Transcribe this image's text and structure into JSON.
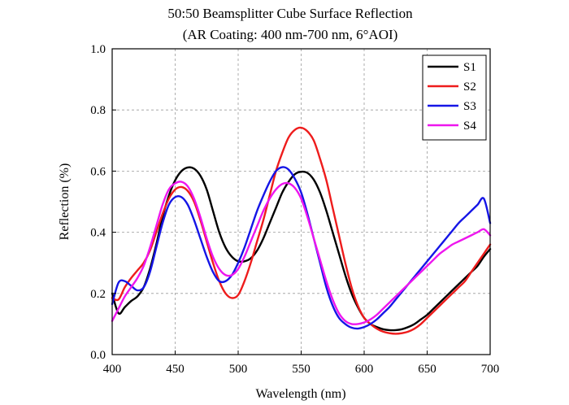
{
  "chart_data": {
    "type": "line",
    "title": "50:50 Beamsplitter Cube Surface Reflection",
    "subtitle": "(AR Coating: 400 nm-700 nm, 6°AOI)",
    "xlabel": "Wavelength (nm)",
    "ylabel": "Reflection (%)",
    "xlim": [
      400,
      700
    ],
    "ylim": [
      0.0,
      1.0
    ],
    "x_ticks": [
      400,
      450,
      500,
      550,
      600,
      650,
      700
    ],
    "y_ticks": [
      0.0,
      0.2,
      0.4,
      0.6,
      0.8,
      1.0
    ],
    "x_tick_labels": [
      "400",
      "450",
      "500",
      "550",
      "600",
      "650",
      "700"
    ],
    "y_tick_labels": [
      "0.0",
      "0.2",
      "0.4",
      "0.6",
      "0.8",
      "1.0"
    ],
    "grid": true,
    "legend_position": "top-right",
    "series": [
      {
        "name": "S1",
        "color": "#000000",
        "x": [
          400,
          405,
          410,
          415,
          420,
          425,
          430,
          435,
          440,
          445,
          450,
          455,
          460,
          465,
          470,
          475,
          480,
          485,
          490,
          495,
          500,
          505,
          510,
          515,
          520,
          525,
          530,
          535,
          540,
          545,
          550,
          555,
          560,
          565,
          570,
          575,
          580,
          585,
          590,
          595,
          600,
          605,
          610,
          615,
          620,
          625,
          630,
          635,
          640,
          645,
          650,
          655,
          660,
          665,
          670,
          675,
          680,
          685,
          690,
          695,
          700
        ],
        "values": [
          0.2,
          0.135,
          0.155,
          0.175,
          0.19,
          0.22,
          0.28,
          0.36,
          0.45,
          0.52,
          0.57,
          0.6,
          0.612,
          0.608,
          0.585,
          0.54,
          0.47,
          0.4,
          0.35,
          0.32,
          0.305,
          0.305,
          0.315,
          0.34,
          0.38,
          0.43,
          0.48,
          0.53,
          0.565,
          0.59,
          0.598,
          0.594,
          0.572,
          0.53,
          0.47,
          0.4,
          0.33,
          0.26,
          0.2,
          0.155,
          0.12,
          0.1,
          0.09,
          0.083,
          0.08,
          0.08,
          0.083,
          0.09,
          0.1,
          0.115,
          0.13,
          0.15,
          0.17,
          0.19,
          0.21,
          0.23,
          0.25,
          0.27,
          0.29,
          0.32,
          0.345
        ]
      },
      {
        "name": "S2",
        "color": "#ee1c1c",
        "x": [
          400,
          405,
          410,
          415,
          420,
          425,
          430,
          435,
          440,
          445,
          450,
          455,
          460,
          465,
          470,
          475,
          480,
          485,
          490,
          495,
          500,
          505,
          510,
          515,
          520,
          525,
          530,
          535,
          540,
          545,
          550,
          555,
          560,
          565,
          570,
          575,
          580,
          585,
          590,
          595,
          600,
          605,
          610,
          615,
          620,
          625,
          630,
          635,
          640,
          645,
          650,
          655,
          660,
          665,
          670,
          675,
          680,
          685,
          690,
          695,
          700
        ],
        "values": [
          0.185,
          0.18,
          0.22,
          0.25,
          0.275,
          0.3,
          0.34,
          0.4,
          0.46,
          0.51,
          0.54,
          0.548,
          0.535,
          0.5,
          0.44,
          0.37,
          0.3,
          0.24,
          0.2,
          0.185,
          0.195,
          0.24,
          0.3,
          0.37,
          0.44,
          0.52,
          0.6,
          0.66,
          0.71,
          0.735,
          0.742,
          0.73,
          0.7,
          0.64,
          0.57,
          0.48,
          0.39,
          0.3,
          0.22,
          0.16,
          0.12,
          0.1,
          0.085,
          0.075,
          0.07,
          0.068,
          0.07,
          0.075,
          0.085,
          0.1,
          0.12,
          0.14,
          0.16,
          0.18,
          0.2,
          0.22,
          0.24,
          0.27,
          0.3,
          0.33,
          0.36
        ]
      },
      {
        "name": "S3",
        "color": "#1515e6",
        "x": [
          400,
          405,
          410,
          415,
          420,
          425,
          430,
          435,
          440,
          445,
          450,
          455,
          460,
          465,
          470,
          475,
          480,
          485,
          490,
          495,
          500,
          505,
          510,
          515,
          520,
          525,
          530,
          535,
          540,
          545,
          550,
          555,
          560,
          565,
          570,
          575,
          580,
          585,
          590,
          595,
          600,
          605,
          610,
          615,
          620,
          625,
          630,
          635,
          640,
          645,
          650,
          655,
          660,
          665,
          670,
          675,
          680,
          685,
          690,
          695,
          700
        ],
        "values": [
          0.165,
          0.235,
          0.24,
          0.225,
          0.21,
          0.22,
          0.27,
          0.35,
          0.43,
          0.49,
          0.515,
          0.515,
          0.49,
          0.44,
          0.38,
          0.32,
          0.27,
          0.24,
          0.24,
          0.26,
          0.3,
          0.35,
          0.41,
          0.47,
          0.52,
          0.565,
          0.6,
          0.613,
          0.605,
          0.575,
          0.53,
          0.46,
          0.38,
          0.3,
          0.22,
          0.16,
          0.12,
          0.1,
          0.088,
          0.085,
          0.09,
          0.1,
          0.115,
          0.135,
          0.155,
          0.18,
          0.205,
          0.23,
          0.255,
          0.28,
          0.305,
          0.33,
          0.355,
          0.38,
          0.405,
          0.43,
          0.45,
          0.47,
          0.49,
          0.51,
          0.43
        ]
      },
      {
        "name": "S4",
        "color": "#ee16ee",
        "x": [
          400,
          405,
          410,
          415,
          420,
          425,
          430,
          435,
          440,
          445,
          450,
          455,
          460,
          465,
          470,
          475,
          480,
          485,
          490,
          495,
          500,
          505,
          510,
          515,
          520,
          525,
          530,
          535,
          540,
          545,
          550,
          555,
          560,
          565,
          570,
          575,
          580,
          585,
          590,
          595,
          600,
          605,
          610,
          615,
          620,
          625,
          630,
          635,
          640,
          645,
          650,
          655,
          660,
          665,
          670,
          675,
          680,
          685,
          690,
          695,
          700
        ],
        "values": [
          0.11,
          0.15,
          0.19,
          0.22,
          0.25,
          0.29,
          0.35,
          0.42,
          0.49,
          0.54,
          0.56,
          0.565,
          0.55,
          0.51,
          0.45,
          0.38,
          0.32,
          0.28,
          0.26,
          0.26,
          0.28,
          0.32,
          0.37,
          0.42,
          0.47,
          0.51,
          0.54,
          0.558,
          0.56,
          0.545,
          0.51,
          0.45,
          0.38,
          0.31,
          0.24,
          0.18,
          0.135,
          0.11,
          0.1,
          0.1,
          0.105,
          0.115,
          0.13,
          0.15,
          0.17,
          0.19,
          0.21,
          0.23,
          0.25,
          0.27,
          0.29,
          0.31,
          0.33,
          0.345,
          0.36,
          0.37,
          0.38,
          0.39,
          0.4,
          0.41,
          0.39
        ]
      }
    ]
  }
}
